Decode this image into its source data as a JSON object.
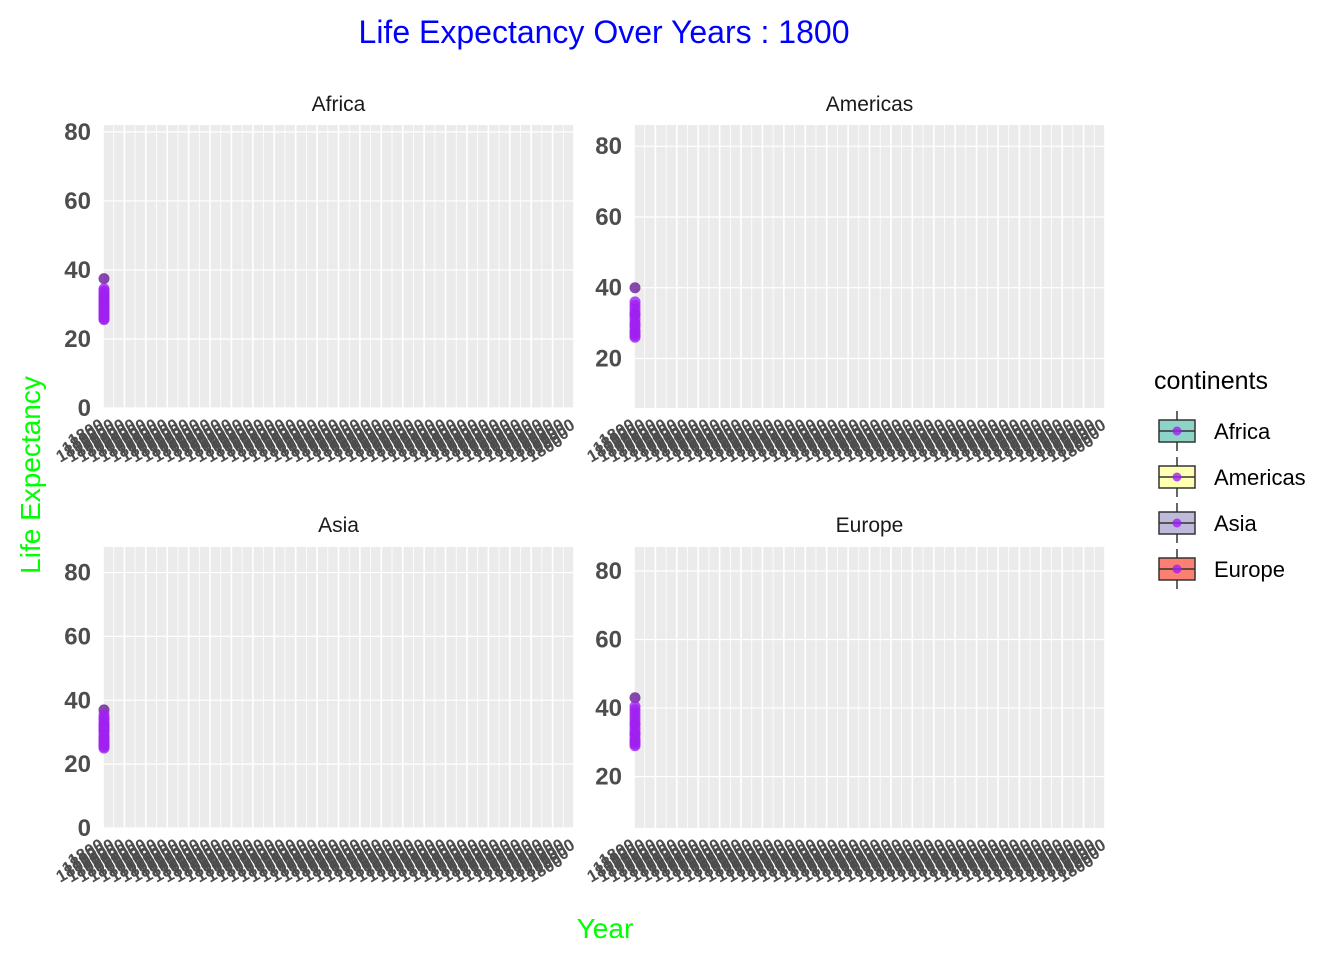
{
  "chart_data": {
    "type": "scatter",
    "title": "Life Expectancy Over Years : 1800",
    "xlabel": "Year",
    "ylabel": "Life Expectancy",
    "legend": {
      "title": "continents",
      "placement": "right",
      "entries": [
        {
          "name": "Africa",
          "fill": "#8DD3C7"
        },
        {
          "name": "Americas",
          "fill": "#FFFFB3"
        },
        {
          "name": "Asia",
          "fill": "#BEBADA"
        },
        {
          "name": "Europe",
          "fill": "#FB8072"
        }
      ]
    },
    "grid": true,
    "colors": {
      "title": "#0000FF",
      "axis_title": "#00FF00",
      "panel_bg": "#EBEBEB",
      "point": "#A020F0",
      "point_dark": "#6A1B9A",
      "tick_label": "#4D4D4D"
    },
    "panels": [
      {
        "name": "Africa",
        "ylim": [
          0,
          82
        ],
        "yticks": [
          0,
          20,
          40,
          60,
          80
        ],
        "x": "1800",
        "y": [
          37.5,
          34.5,
          33.9,
          33.2,
          32.6,
          32.1,
          31.5,
          31.0,
          30.5,
          30.1,
          29.6,
          29.1,
          28.7,
          28.2,
          27.7,
          27.2,
          26.8,
          26.3,
          25.9,
          25.6
        ]
      },
      {
        "name": "Americas",
        "ylim": [
          6,
          86
        ],
        "yticks": [
          20,
          40,
          60,
          80
        ],
        "x": "1800",
        "y": [
          40,
          36,
          35,
          34,
          33,
          32.5,
          32,
          31,
          30,
          29.5,
          29,
          28,
          27.5,
          27,
          26.5,
          26
        ]
      },
      {
        "name": "Asia",
        "ylim": [
          0,
          88
        ],
        "yticks": [
          0,
          20,
          40,
          60,
          80
        ],
        "x": "1800",
        "y": [
          37,
          35.5,
          34.5,
          34,
          33,
          32.5,
          32,
          31.5,
          31,
          30.5,
          30,
          29,
          28.5,
          28,
          27.5,
          27,
          26.5,
          26,
          25.5,
          25
        ]
      },
      {
        "name": "Europe",
        "ylim": [
          5,
          87
        ],
        "yticks": [
          20,
          40,
          60,
          80
        ],
        "x": "1800",
        "y": [
          43,
          40.5,
          39.5,
          38.5,
          37.5,
          36.5,
          35.5,
          35,
          34,
          33,
          32.5,
          32,
          31,
          30.5,
          30,
          29.5,
          29
        ]
      }
    ]
  }
}
